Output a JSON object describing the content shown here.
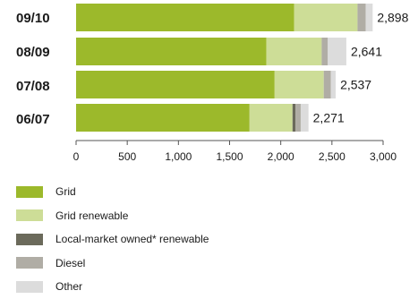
{
  "chart_data": {
    "type": "bar",
    "orientation": "horizontal",
    "stacked": true,
    "categories": [
      "09/10",
      "08/09",
      "07/08",
      "06/07"
    ],
    "series": [
      {
        "name": "Grid",
        "color": "#9cb92b",
        "values": [
          2130,
          1860,
          1940,
          1695
        ]
      },
      {
        "name": "Grid renewable",
        "color": "#cddd97",
        "values": [
          620,
          540,
          480,
          420
        ]
      },
      {
        "name": "Local-market owned* renewable",
        "color": "#6b6a5b",
        "values": [
          0,
          0,
          0,
          30
        ]
      },
      {
        "name": "Diesel",
        "color": "#b0ada5",
        "values": [
          80,
          60,
          70,
          50
        ]
      },
      {
        "name": "Other",
        "color": "#dcdcdc",
        "values": [
          68,
          181,
          47,
          76
        ]
      }
    ],
    "totals": [
      "2,898",
      "2,641",
      "2,537",
      "2,271"
    ],
    "xlim": [
      0,
      3000
    ],
    "xticks": [
      "0",
      "500",
      "1,000",
      "1,500",
      "2,000",
      "2,500",
      "3,000"
    ],
    "grid": false,
    "legend_position": "bottom-left"
  }
}
